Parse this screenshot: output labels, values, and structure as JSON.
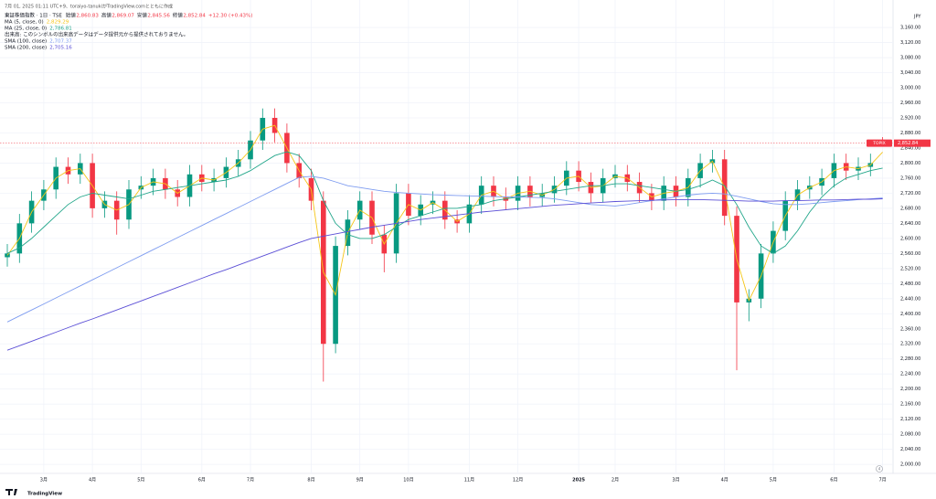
{
  "chart_data": {
    "type": "candlestick",
    "caption": "7月 01, 2025 01:11 UTC+9、toraiyo-tanukiがTradingView.comとともに作成",
    "symbol": "東証株価指数 · 1日 · TSE",
    "ohlc_legend": [
      {
        "label": "始値",
        "value_label": "2,860.83"
      },
      {
        "label": "高値",
        "value_label": "2,869.07"
      },
      {
        "label": "安値",
        "value_label": "2,845.56"
      },
      {
        "label": "終値",
        "value_label": "2,852.84"
      }
    ],
    "change_label": "+12.30 (+0.43%)",
    "volume_note": "出来高: このシンボルの出来高データはデータ提供元から提供されておりません。",
    "currency": "JPY",
    "price_tag": "TOPIX",
    "last_price_label": "2,852.84",
    "event_badge": "4",
    "up_color": "#089981",
    "down_color": "#f23645",
    "grid": true,
    "categories": [
      null,
      null,
      null,
      "3月",
      null,
      null,
      null,
      "4月",
      null,
      null,
      null,
      "5月",
      null,
      null,
      null,
      null,
      "6月",
      null,
      null,
      null,
      "7月",
      null,
      null,
      null,
      null,
      "8月",
      null,
      null,
      null,
      "9月",
      null,
      null,
      null,
      "10月",
      null,
      null,
      null,
      null,
      "11月",
      null,
      null,
      null,
      "12月",
      null,
      null,
      null,
      null,
      "2025",
      null,
      null,
      "2月",
      null,
      null,
      null,
      null,
      "3月",
      null,
      null,
      null,
      "4月",
      null,
      null,
      null,
      "5月",
      null,
      null,
      null,
      null,
      "6月",
      null,
      null,
      null,
      "7月"
    ],
    "open": [
      2550,
      2560,
      2640,
      2700,
      2730,
      2790,
      2770,
      2800,
      2680,
      2700,
      2650,
      2730,
      2740,
      2760,
      2730,
      2710,
      2770,
      2750,
      2760,
      2790,
      2810,
      2860,
      2920,
      2880,
      2800,
      2760,
      2700,
      2320,
      2580,
      2650,
      2700,
      2610,
      2560,
      2720,
      2660,
      2690,
      2700,
      2650,
      2640,
      2690,
      2740,
      2710,
      2700,
      2740,
      2710,
      2720,
      2740,
      2780,
      2750,
      2720,
      2760,
      2770,
      2750,
      2720,
      2700,
      2740,
      2710,
      2760,
      2800,
      2810,
      2660,
      2430,
      2440,
      2560,
      2620,
      2700,
      2730,
      2740,
      2760,
      2800,
      2780,
      2790,
      2860.83
    ],
    "high": [
      2585,
      2665,
      2725,
      2755,
      2815,
      2815,
      2825,
      2825,
      2725,
      2725,
      2755,
      2765,
      2785,
      2785,
      2755,
      2795,
      2795,
      2785,
      2815,
      2835,
      2885,
      2945,
      2945,
      2905,
      2825,
      2785,
      2725,
      2605,
      2675,
      2725,
      2725,
      2635,
      2745,
      2745,
      2715,
      2725,
      2725,
      2675,
      2715,
      2765,
      2765,
      2735,
      2765,
      2765,
      2745,
      2765,
      2805,
      2805,
      2775,
      2785,
      2795,
      2795,
      2775,
      2745,
      2765,
      2765,
      2785,
      2825,
      2835,
      2835,
      2685,
      2465,
      2585,
      2645,
      2725,
      2755,
      2765,
      2785,
      2825,
      2825,
      2815,
      2825,
      2869.07
    ],
    "low": [
      2525,
      2535,
      2615,
      2675,
      2705,
      2745,
      2745,
      2655,
      2655,
      2610,
      2625,
      2705,
      2715,
      2705,
      2685,
      2685,
      2725,
      2725,
      2735,
      2765,
      2785,
      2835,
      2855,
      2775,
      2735,
      2675,
      2220,
      2295,
      2555,
      2625,
      2585,
      2510,
      2535,
      2635,
      2635,
      2665,
      2625,
      2615,
      2615,
      2665,
      2685,
      2675,
      2675,
      2685,
      2685,
      2695,
      2715,
      2725,
      2695,
      2695,
      2735,
      2725,
      2695,
      2675,
      2675,
      2685,
      2685,
      2735,
      2775,
      2635,
      2250,
      2380,
      2415,
      2535,
      2595,
      2675,
      2705,
      2715,
      2735,
      2755,
      2755,
      2765,
      2845.56
    ],
    "close": [
      2560,
      2640,
      2700,
      2730,
      2790,
      2770,
      2800,
      2680,
      2700,
      2650,
      2730,
      2740,
      2760,
      2730,
      2710,
      2770,
      2750,
      2760,
      2790,
      2810,
      2860,
      2920,
      2880,
      2800,
      2760,
      2700,
      2320,
      2580,
      2650,
      2700,
      2610,
      2560,
      2720,
      2660,
      2690,
      2700,
      2650,
      2640,
      2690,
      2740,
      2710,
      2700,
      2740,
      2710,
      2720,
      2740,
      2780,
      2750,
      2720,
      2760,
      2770,
      2750,
      2720,
      2700,
      2740,
      2710,
      2760,
      2800,
      2810,
      2660,
      2430,
      2440,
      2560,
      2620,
      2700,
      2730,
      2740,
      2760,
      2800,
      2780,
      2790,
      2800,
      2852.84
    ],
    "lines": [
      {
        "name": "MA (5, close, 0)",
        "value_label": "2,829.29",
        "color": "#f5c518",
        "values": [
          2555,
          2600,
          2670,
          2715,
          2760,
          2780,
          2785,
          2740,
          2690,
          2675,
          2690,
          2735,
          2750,
          2745,
          2720,
          2740,
          2760,
          2755,
          2775,
          2800,
          2835,
          2890,
          2900,
          2840,
          2780,
          2730,
          2510,
          2450,
          2615,
          2675,
          2655,
          2585,
          2640,
          2690,
          2675,
          2695,
          2675,
          2645,
          2665,
          2715,
          2725,
          2705,
          2720,
          2725,
          2715,
          2730,
          2760,
          2765,
          2735,
          2740,
          2765,
          2760,
          2735,
          2710,
          2720,
          2725,
          2735,
          2780,
          2805,
          2735,
          2545,
          2435,
          2500,
          2590,
          2660,
          2715,
          2735,
          2750,
          2780,
          2790,
          2785,
          2795,
          2829.29
        ]
      },
      {
        "name": "MA (25, close, 0)",
        "value_label": "2,786.81",
        "color": "#22a68a",
        "values": [
          2560,
          2575,
          2600,
          2630,
          2660,
          2690,
          2710,
          2720,
          2715,
          2710,
          2705,
          2715,
          2725,
          2730,
          2735,
          2740,
          2745,
          2750,
          2755,
          2765,
          2780,
          2800,
          2820,
          2830,
          2820,
          2780,
          2700,
          2640,
          2610,
          2600,
          2600,
          2610,
          2630,
          2650,
          2660,
          2670,
          2680,
          2680,
          2685,
          2690,
          2700,
          2705,
          2710,
          2715,
          2720,
          2725,
          2730,
          2735,
          2740,
          2740,
          2745,
          2745,
          2740,
          2735,
          2730,
          2725,
          2730,
          2740,
          2755,
          2740,
          2690,
          2630,
          2580,
          2560,
          2580,
          2620,
          2670,
          2710,
          2740,
          2760,
          2770,
          2780,
          2786.81
        ]
      },
      {
        "name": "SMA (100, close)",
        "value_label": "2,707.37",
        "color": "#7e9cf0",
        "values": [
          2378,
          2394,
          2410,
          2426,
          2442,
          2458,
          2474,
          2490,
          2506,
          2522,
          2538,
          2554,
          2570,
          2586,
          2602,
          2618,
          2634,
          2650,
          2666,
          2682,
          2698,
          2714,
          2730,
          2746,
          2762,
          2765,
          2760,
          2750,
          2740,
          2735,
          2730,
          2725,
          2722,
          2720,
          2718,
          2716,
          2715,
          2714,
          2713,
          2712,
          2711,
          2710,
          2710,
          2709,
          2708,
          2705,
          2700,
          2695,
          2690,
          2688,
          2686,
          2690,
          2695,
          2700,
          2705,
          2710,
          2715,
          2718,
          2720,
          2718,
          2712,
          2705,
          2698,
          2692,
          2690,
          2690,
          2692,
          2695,
          2698,
          2700,
          2703,
          2705,
          2707.37
        ]
      },
      {
        "name": "SMA (200, close)",
        "value_label": "2,705.16",
        "color": "#5b4fd6",
        "values": [
          2303,
          2315,
          2327,
          2339,
          2351,
          2363,
          2375,
          2386,
          2398,
          2410,
          2422,
          2434,
          2446,
          2458,
          2470,
          2482,
          2494,
          2506,
          2517,
          2529,
          2541,
          2553,
          2565,
          2577,
          2589,
          2600,
          2606,
          2612,
          2618,
          2624,
          2630,
          2635,
          2640,
          2645,
          2650,
          2654,
          2658,
          2662,
          2666,
          2670,
          2673,
          2676,
          2679,
          2682,
          2685,
          2688,
          2690,
          2692,
          2694,
          2696,
          2698,
          2699,
          2700,
          2701,
          2702,
          2703,
          2703,
          2703,
          2702,
          2701,
          2700,
          2699,
          2699,
          2699,
          2700,
          2700,
          2701,
          2702,
          2702,
          2703,
          2704,
          2704,
          2705.16
        ]
      }
    ],
    "ylim": [
      1976,
      3233
    ],
    "yticks": [
      {
        "value": 2000,
        "label": "2,000.00"
      },
      {
        "value": 2040,
        "label": "2,040.00"
      },
      {
        "value": 2080,
        "label": "2,080.00"
      },
      {
        "value": 2120,
        "label": "2,120.00"
      },
      {
        "value": 2160,
        "label": "2,160.00"
      },
      {
        "value": 2200,
        "label": "2,200.00"
      },
      {
        "value": 2240,
        "label": "2,240.00"
      },
      {
        "value": 2280,
        "label": "2,280.00"
      },
      {
        "value": 2320,
        "label": "2,320.00"
      },
      {
        "value": 2360,
        "label": "2,360.00"
      },
      {
        "value": 2400,
        "label": "2,400.00"
      },
      {
        "value": 2440,
        "label": "2,440.00"
      },
      {
        "value": 2480,
        "label": "2,480.00"
      },
      {
        "value": 2520,
        "label": "2,520.00"
      },
      {
        "value": 2560,
        "label": "2,560.00"
      },
      {
        "value": 2600,
        "label": "2,600.00"
      },
      {
        "value": 2640,
        "label": "2,640.00"
      },
      {
        "value": 2680,
        "label": "2,680.00"
      },
      {
        "value": 2720,
        "label": "2,720.00"
      },
      {
        "value": 2760,
        "label": "2,760.00"
      },
      {
        "value": 2800,
        "label": "2,800.00"
      },
      {
        "value": 2840,
        "label": "2,840.00"
      },
      {
        "value": 2880,
        "label": "2,880.00"
      },
      {
        "value": 2920,
        "label": "2,920.00"
      },
      {
        "value": 2960,
        "label": "2,960.00"
      },
      {
        "value": 3000,
        "label": "3,000.00"
      },
      {
        "value": 3040,
        "label": "3,040.00"
      },
      {
        "value": 3080,
        "label": "3,080.00"
      },
      {
        "value": 3120,
        "label": "3,120.00"
      },
      {
        "value": 3160,
        "label": "3,160.00"
      }
    ]
  },
  "footer": {
    "brand": "TradingView"
  }
}
